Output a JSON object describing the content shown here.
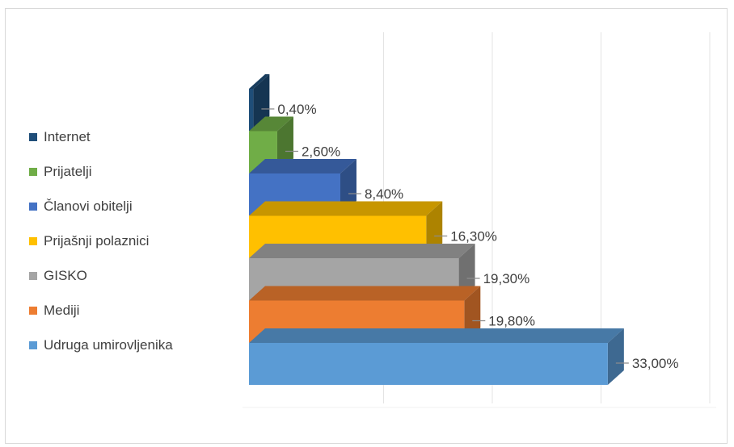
{
  "chart_data": {
    "type": "bar",
    "orientation": "horizontal",
    "three_d": true,
    "categories": [
      "Internet",
      "Prijatelji",
      "Članovi obitelji",
      "Prijašnji polaznici",
      "GISKO",
      "Mediji",
      "Udruga umirovljenika"
    ],
    "values": [
      0.4,
      2.6,
      8.4,
      16.3,
      19.3,
      19.8,
      33.0
    ],
    "data_labels": [
      "0,40%",
      "2,60%",
      "8,40%",
      "16,30%",
      "19,30%",
      "19,80%",
      "33,00%"
    ],
    "colors": [
      "#1f4e79",
      "#70ad47",
      "#4472c4",
      "#ffc000",
      "#a5a5a5",
      "#ed7d31",
      "#5b9bd5"
    ],
    "title": "",
    "xlabel": "",
    "ylabel": "",
    "xlim": [
      0,
      40
    ],
    "grid": "vertical",
    "legend_position": "left"
  }
}
